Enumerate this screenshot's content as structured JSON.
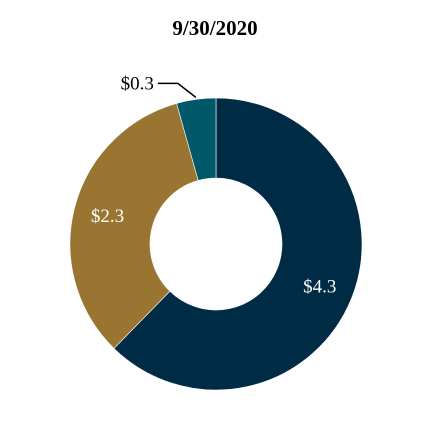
{
  "chart_data": {
    "type": "pie",
    "title": "9/30/2020",
    "donut": true,
    "slices": [
      {
        "label": "$4.3",
        "value": 4.3,
        "color": "#002b45",
        "label_color": "#ffffff"
      },
      {
        "label": "$2.3",
        "value": 2.3,
        "color": "#9a7431",
        "label_color": "#ffffff"
      },
      {
        "label": "$0.3",
        "value": 0.3,
        "color": "#005869",
        "label_color": "#000000"
      }
    ]
  }
}
